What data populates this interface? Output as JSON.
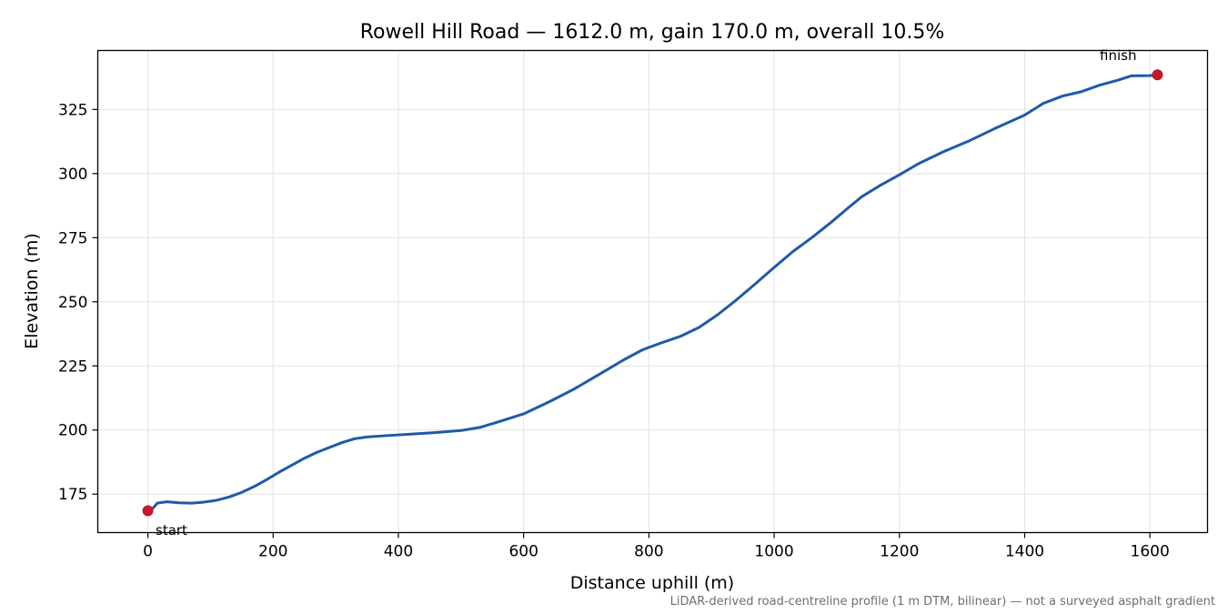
{
  "chart_data": {
    "type": "line",
    "title": "Rowell Hill Road — 1612.0 m, gain 170.0 m, overall 10.5%",
    "xlabel": "Distance uphill (m)",
    "ylabel": "Elevation (m)",
    "xlim": [
      -80,
      1692
    ],
    "ylim": [
      160,
      348
    ],
    "xticks": [
      0,
      200,
      400,
      600,
      800,
      1000,
      1200,
      1400,
      1600
    ],
    "yticks": [
      175,
      200,
      225,
      250,
      275,
      300,
      325
    ],
    "grid": true,
    "series": [
      {
        "color": "#1f5aa8",
        "x": [
          0,
          8,
          15,
          30,
          50,
          70,
          90,
          110,
          130,
          150,
          170,
          190,
          210,
          230,
          250,
          270,
          290,
          310,
          330,
          350,
          380,
          420,
          460,
          500,
          530,
          560,
          600,
          640,
          680,
          720,
          760,
          790,
          820,
          850,
          880,
          910,
          940,
          970,
          1000,
          1030,
          1060,
          1090,
          1120,
          1140,
          1170,
          1200,
          1230,
          1270,
          1310,
          1350,
          1400,
          1430,
          1460,
          1490,
          1520,
          1550,
          1570,
          1600,
          1612
        ],
        "y": [
          168.5,
          169.5,
          171.5,
          172.0,
          171.6,
          171.5,
          171.9,
          172.6,
          173.9,
          175.7,
          178.0,
          180.7,
          183.6,
          186.3,
          189.0,
          191.3,
          193.2,
          195.1,
          196.6,
          197.3,
          197.8,
          198.4,
          199.0,
          199.8,
          201.0,
          203.2,
          206.3,
          210.9,
          215.9,
          221.6,
          227.4,
          231.3,
          234.0,
          236.5,
          240.0,
          245.0,
          250.8,
          257.0,
          263.4,
          269.6,
          275.0,
          280.8,
          287.0,
          291.0,
          295.5,
          299.5,
          303.8,
          308.5,
          312.6,
          317.3,
          322.8,
          327.4,
          330.2,
          331.9,
          334.5,
          336.5,
          338.1,
          338.2,
          338.5
        ]
      }
    ],
    "markers": [
      {
        "x": 0,
        "y": 168.5,
        "color": "#c4172c"
      },
      {
        "x": 1612,
        "y": 338.5,
        "color": "#c4172c"
      }
    ],
    "annotations": {
      "start": "start",
      "finish": "finish"
    },
    "footnote": "LiDAR-derived road-centreline profile (1 m DTM, bilinear) — not a surveyed asphalt gradient"
  }
}
